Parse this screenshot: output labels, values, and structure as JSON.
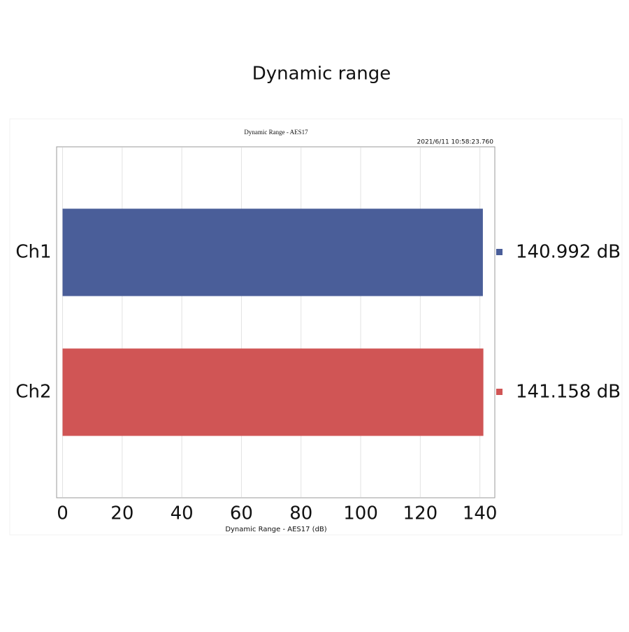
{
  "chart_data": {
    "type": "hbar",
    "title": "Dynamic range",
    "subtitle": "Dynamic Range - AES17",
    "timestamp": "2021/6/11 10:58:23.760",
    "xlabel": "Dynamic Range - AES17 (dB)",
    "categories": [
      "Ch1",
      "Ch2"
    ],
    "series": [
      {
        "name": "Ch1",
        "color": "#4a5e99",
        "values": [
          140.992,
          null
        ],
        "value_labels": [
          "140.992 dB",
          null
        ]
      },
      {
        "name": "Ch2",
        "color": "#d05555",
        "values": [
          null,
          141.158
        ],
        "value_labels": [
          null,
          "141.158 dB"
        ]
      }
    ],
    "xlim": [
      -2,
      145
    ],
    "xticks": [
      0,
      20,
      40,
      60,
      80,
      100,
      120,
      140
    ],
    "grid": true
  }
}
